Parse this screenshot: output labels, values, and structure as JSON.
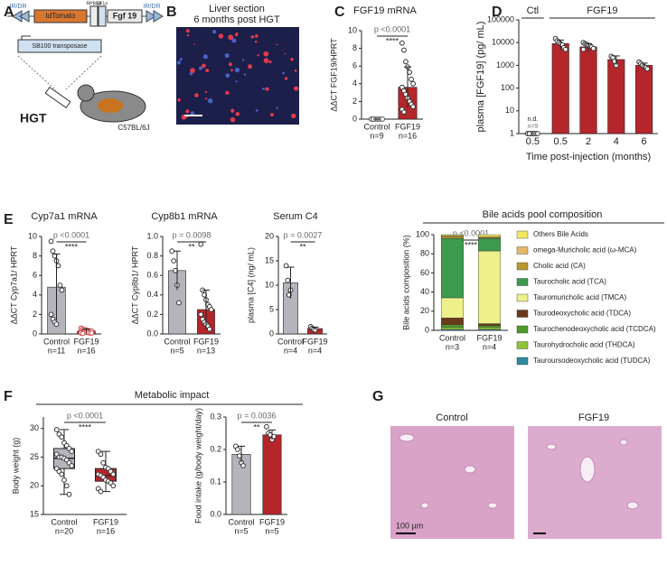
{
  "panels": {
    "labels": [
      "A",
      "B",
      "C",
      "D",
      "E",
      "F",
      "G"
    ],
    "A": {
      "ir_left": "IR/DR",
      "tdtomato": "tdTomato",
      "rpbsa": "RPBSA",
      "ef1a": "EF1α",
      "fgf19": "Fgf 19",
      "ir_right": "IR/DR",
      "transposase": "SB100 transposase",
      "hgt": "HGT",
      "strain": "C57BL/6J"
    },
    "B": {
      "title": "Liver section",
      "subtitle": "6 months post HGT"
    },
    "F": {
      "title": "Metabolic impact"
    },
    "G": {
      "left": "Control",
      "right": "FGF19",
      "scale": "100 µm"
    }
  },
  "chart_data": [
    {
      "type": "bar",
      "title": "FGF19 mRNA",
      "ylabel": "ΔΔCT FGF19/HPRT",
      "categories": [
        "Control",
        "FGF19"
      ],
      "n_labels": [
        "n=9",
        "n=16"
      ],
      "values": [
        0,
        3.6
      ],
      "errors": [
        0,
        2.3
      ],
      "colors": [
        "#b4b4bd",
        "#b5262b"
      ],
      "point_colors": [
        "#555555",
        "#333333"
      ],
      "points": [
        [
          0,
          0,
          0,
          0,
          0,
          0,
          0,
          0,
          0
        ],
        [
          8.6,
          7.8,
          6.5,
          5.9,
          5.3,
          4.5,
          4.0,
          3.6,
          3.2,
          2.8,
          2.4,
          2.0,
          1.7,
          1.4,
          1.1,
          0.8
        ]
      ],
      "ylim": [
        0,
        10
      ],
      "yticks": [
        0,
        2,
        4,
        6,
        8,
        10
      ],
      "significance": {
        "p": "p <0.0001",
        "stars": "****"
      }
    },
    {
      "type": "bar",
      "ylabel": "plasma [FGF19] (pg/ mL)",
      "xlabel": "Time post-injection (months)",
      "log_scale": true,
      "categories": [
        "0.5",
        "0.5",
        "2",
        "4",
        "6"
      ],
      "group_labels": [
        "Ctl",
        "FGF19"
      ],
      "n_labels": [
        "n=9",
        "n=7",
        "n=8",
        "n=4",
        "n=6"
      ],
      "values": [
        null,
        9000,
        6500,
        1800,
        1000
      ],
      "value_labels": [
        "n.d.",
        null,
        null,
        null,
        null
      ],
      "errors": [
        null,
        4000,
        2500,
        800,
        250
      ],
      "colors": [
        "#b5262b",
        "#b5262b",
        "#b5262b",
        "#b5262b",
        "#b5262b"
      ],
      "point_colors": [
        "#333333",
        "#333333",
        "#333333",
        "#333333",
        "#333333"
      ],
      "points": [
        [
          1,
          1,
          1,
          1,
          1,
          1,
          1,
          1,
          1
        ],
        [
          15000,
          12000,
          10000,
          9000,
          8000,
          6000,
          5000
        ],
        [
          10000,
          9000,
          8500,
          7500,
          7000,
          6500,
          5500,
          5000
        ],
        [
          2500,
          2200,
          1500,
          1000
        ],
        [
          1400,
          1200,
          1000,
          900,
          800,
          700
        ]
      ],
      "ylim": [
        1,
        100000
      ],
      "yticks": [
        1,
        10,
        100,
        1000,
        10000,
        100000
      ]
    },
    {
      "type": "bar",
      "title": "Cyp7a1 mRNA",
      "ylabel": "ΔΔCT Cyp7a1/ HPRT",
      "categories": [
        "Control",
        "FGF19"
      ],
      "n_labels": [
        "n=11",
        "n=16"
      ],
      "values": [
        4.8,
        0.3
      ],
      "errors": [
        3.4,
        0.2
      ],
      "colors": [
        "#b4b4bd",
        "#b5262b"
      ],
      "point_colors": [
        "#333333",
        "#d23a3a"
      ],
      "points": [
        [
          9.5,
          8.5,
          8,
          7.5,
          7,
          5,
          4.5,
          2,
          1.5,
          1.2,
          1
        ],
        [
          0.6,
          0.5,
          0.45,
          0.4,
          0.35,
          0.3,
          0.3,
          0.25,
          0.2,
          0.2,
          0.15,
          0.15,
          0.1,
          0.1,
          0.1,
          0.05
        ]
      ],
      "ylim": [
        0,
        10
      ],
      "yticks": [
        0,
        2,
        4,
        6,
        8,
        10
      ],
      "significance": {
        "p": "p <0.0001",
        "stars": "****"
      }
    },
    {
      "type": "bar",
      "title": "Cyp8b1 mRNA",
      "ylabel": "ΔΔCT Cyp8b1/ HPRT",
      "categories": [
        "Control",
        "FGF19"
      ],
      "n_labels": [
        "n=5",
        "n=13"
      ],
      "values": [
        0.65,
        0.25
      ],
      "errors": [
        0.2,
        0.2
      ],
      "colors": [
        "#b4b4bd",
        "#b5262b"
      ],
      "point_colors": [
        "#333333",
        "#333333"
      ],
      "points": [
        [
          0.85,
          0.75,
          0.65,
          0.5,
          0.32
        ],
        [
          0.92,
          0.45,
          0.4,
          0.35,
          0.3,
          0.28,
          0.25,
          0.2,
          0.15,
          0.12,
          0.1,
          0.08,
          0.05
        ]
      ],
      "ylim": [
        0,
        1
      ],
      "yticks": [
        {
          "value": 0,
          "label": "0.0"
        },
        0.2,
        0.4,
        0.6,
        0.8,
        {
          "value": 1,
          "label": "1.0"
        }
      ],
      "significance": {
        "p": "p = 0.0098",
        "stars": "**"
      }
    },
    {
      "type": "bar",
      "title": "Serum C4",
      "ylabel": "plasma [C4] (ng/ mL)",
      "categories": [
        "Control",
        "FGF19"
      ],
      "n_labels": [
        "n=4",
        "n=4"
      ],
      "values": [
        10.5,
        1.1
      ],
      "errors": [
        3.2,
        0.3
      ],
      "colors": [
        "#b4b4bd",
        "#b5262b"
      ],
      "point_colors": [
        "#333333",
        "#333333"
      ],
      "points": [
        [
          14,
          11,
          8,
          9
        ],
        [
          1.5,
          1.2,
          0.9,
          0.8
        ]
      ],
      "ylim": [
        0,
        20
      ],
      "yticks": [
        0,
        5,
        10,
        15,
        20
      ],
      "significance": {
        "p": "p = 0.0027",
        "stars": "**"
      }
    },
    {
      "type": "stacked_bar",
      "title": "Bile acids pool composition",
      "ylabel": "Bile acids composition (%)",
      "categories": [
        "Control",
        "FGF19"
      ],
      "n_labels": [
        "n=3",
        "n=4"
      ],
      "series": [
        {
          "name": "Tauroursodeoxycholic acid (TUDCA)",
          "color": "#2f8a9c",
          "values": [
            1,
            1
          ]
        },
        {
          "name": "Taurohydrocholic acid (THDCA)",
          "color": "#8fc43c",
          "values": [
            2,
            2
          ]
        },
        {
          "name": "Taurochenodeoxycholic acid (TCDCA)",
          "color": "#4e9a2a",
          "values": [
            3,
            2
          ]
        },
        {
          "name": "Taurodeoxycholic acid (TDCA)",
          "color": "#6b3a1c",
          "values": [
            7,
            2
          ]
        },
        {
          "name": "Tauromuricholic acid (TMCA)",
          "color": "#eef08a",
          "values": [
            21,
            76
          ]
        },
        {
          "name": "Taurocholic acid (TCA)",
          "color": "#3c9a4c",
          "values": [
            62,
            13
          ]
        },
        {
          "name": "Cholic acid (CA)",
          "color": "#b89a30",
          "values": [
            2,
            1
          ]
        },
        {
          "name": "omega-Muricholic acid (ω-MCA)",
          "color": "#e8b86a",
          "values": [
            1,
            1
          ]
        },
        {
          "name": "Others Bile Acids",
          "color": "#f2ea5c",
          "values": [
            1,
            2
          ]
        }
      ],
      "ylim": [
        0,
        100
      ],
      "yticks": [
        0,
        20,
        40,
        60,
        80,
        100
      ],
      "significance": {
        "p": "p <0.0001",
        "stars": "****"
      }
    },
    {
      "type": "box",
      "ylabel": "Body weight (g)",
      "categories": [
        "Control",
        "FGF19"
      ],
      "n_labels": [
        "n=20",
        "n=16"
      ],
      "min": [
        18.5,
        19
      ],
      "q1": [
        23,
        20.8
      ],
      "median": [
        24.8,
        21.8
      ],
      "q3": [
        26.5,
        23
      ],
      "max": [
        29.8,
        26
      ],
      "colors": [
        "#b4b4bd",
        "#b5262b"
      ],
      "point_colors": [
        "#333333",
        "#333333"
      ],
      "points": [
        [
          29.8,
          29,
          28.5,
          27.5,
          27,
          26.5,
          26,
          25.5,
          25,
          25,
          24.8,
          24.5,
          24,
          23.5,
          23,
          22.5,
          22,
          21,
          20,
          18.5
        ],
        [
          26,
          25.5,
          24,
          23.2,
          23,
          22.5,
          22,
          22,
          21.8,
          21.5,
          21,
          20.8,
          20.5,
          20,
          19.5,
          19
        ]
      ],
      "ylim": [
        15,
        32
      ],
      "yticks": [
        15,
        20,
        25,
        30
      ],
      "significance": {
        "p": "p <0.0001",
        "stars": "****"
      }
    },
    {
      "type": "bar",
      "ylabel": "Food intake (g/body weight/day)",
      "categories": [
        "Control",
        "FGF19"
      ],
      "n_labels": [
        "n=5",
        "n=5"
      ],
      "values": [
        0.185,
        0.245
      ],
      "errors": [
        0.025,
        0.015
      ],
      "colors": [
        "#b4b4bd",
        "#b5262b"
      ],
      "point_colors": [
        "#333333",
        "#333333"
      ],
      "points": [
        [
          0.21,
          0.2,
          0.18,
          0.16,
          0.15
        ],
        [
          0.27,
          0.25,
          0.245,
          0.23,
          0.24
        ]
      ],
      "ylim": [
        0,
        0.3
      ],
      "yticks": [
        {
          "value": 0,
          "label": "0.0"
        },
        0.1,
        0.2,
        0.3
      ],
      "significance": {
        "p": "p = 0.0036",
        "stars": "**"
      }
    }
  ]
}
